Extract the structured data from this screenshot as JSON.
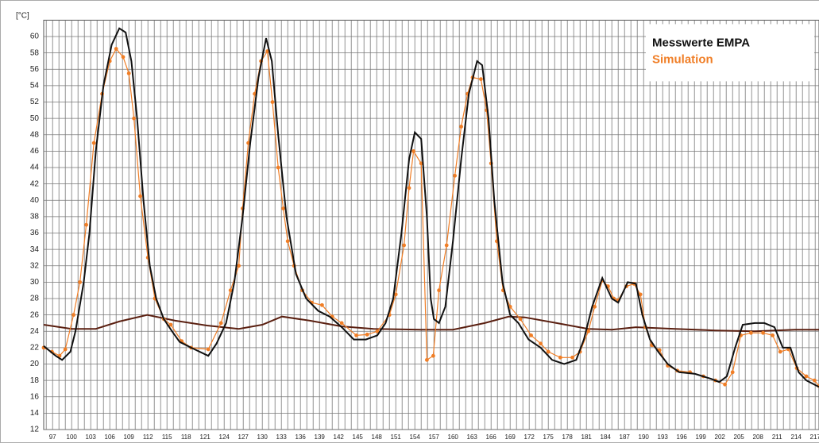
{
  "chart_data": {
    "type": "line",
    "y_label": "[°C]",
    "xlim": [
      95.6,
      217.6
    ],
    "ylim": [
      12,
      62
    ],
    "xticks": [
      97,
      100,
      103,
      106,
      109,
      112,
      115,
      118,
      121,
      124,
      127,
      130,
      133,
      136,
      139,
      142,
      145,
      148,
      151,
      154,
      157,
      160,
      163,
      166,
      169,
      172,
      175,
      178,
      181,
      184,
      187,
      190,
      193,
      196,
      199,
      202,
      205,
      208,
      211,
      214,
      217
    ],
    "yticks": [
      12,
      14,
      16,
      18,
      20,
      22,
      24,
      26,
      28,
      30,
      32,
      34,
      36,
      38,
      40,
      42,
      44,
      46,
      48,
      50,
      52,
      54,
      56,
      58,
      60
    ],
    "grid": true,
    "legend": "upper right",
    "series": [
      {
        "name": "Messwerte EMPA",
        "color": "#111111",
        "markers": false,
        "x": [
          95.6,
          97.5,
          98.5,
          99.8,
          100.6,
          101.9,
          102.8,
          103.8,
          105,
          106.3,
          107.5,
          108.5,
          109.4,
          110.3,
          111.3,
          112.3,
          113.3,
          114.5,
          115.8,
          117,
          118.8,
          121.5,
          122.8,
          124.3,
          125.6,
          126.9,
          128.1,
          129.4,
          130.6,
          131.5,
          132.5,
          133.8,
          135.3,
          136.9,
          138.8,
          140.6,
          142.5,
          144.4,
          146.3,
          148.1,
          149.4,
          150.6,
          151.9,
          153.1,
          154,
          155,
          155.9,
          156.5,
          157,
          157.8,
          158.8,
          160,
          161.3,
          162.5,
          163.8,
          164.6,
          165.6,
          166.5,
          167.8,
          169,
          170.3,
          171.9,
          173.8,
          175.6,
          177.5,
          179.4,
          180.6,
          181.9,
          183.5,
          185,
          186,
          187.5,
          188.8,
          189.8,
          191,
          192.3,
          193.8,
          195.6,
          198.1,
          200.6,
          201.9,
          203.1,
          204.4,
          205.6,
          207.5,
          209,
          210.6,
          211.9,
          213.1,
          214.4,
          215.6,
          217.6
        ],
        "values": [
          22.2,
          21,
          20.5,
          21.5,
          24,
          30,
          36,
          46,
          54,
          59,
          61,
          60.5,
          57,
          50,
          40,
          32,
          28,
          25.5,
          24,
          22.7,
          22,
          21,
          22.5,
          25,
          30,
          38,
          47,
          55,
          59.8,
          57,
          48,
          38,
          31,
          28,
          26.5,
          25.8,
          24.5,
          23,
          23,
          23.5,
          25,
          28,
          36,
          45,
          48.3,
          47.5,
          38,
          28,
          25.5,
          25,
          27,
          35,
          45,
          53,
          57,
          56.5,
          50,
          40,
          30,
          26,
          25,
          23,
          22,
          20.5,
          20,
          20.5,
          23,
          27,
          30.5,
          28,
          27.5,
          30,
          29.8,
          26,
          23,
          21.5,
          20,
          19,
          18.8,
          18.2,
          17.8,
          18.5,
          22,
          24.8,
          25,
          25,
          24.5,
          22,
          22,
          19,
          18,
          17.2
        ]
      },
      {
        "name": "Simulation",
        "color": "#f07e26",
        "markers": true,
        "x": [
          95.6,
          96.9,
          98.1,
          99,
          100.3,
          101.3,
          102.3,
          103.5,
          104.8,
          106,
          107,
          108.1,
          109,
          109.8,
          110.8,
          112,
          113.1,
          114.5,
          115.6,
          117.3,
          118.8,
          121.5,
          123.5,
          125,
          126.3,
          126.9,
          127.8,
          128.8,
          129.8,
          130.8,
          131.6,
          132.5,
          133.3,
          134,
          135,
          136.3,
          137.8,
          139.4,
          141,
          142.5,
          144.8,
          146.5,
          148.1,
          150,
          151,
          152.3,
          153.1,
          153.8,
          155,
          155.9,
          156.9,
          157.8,
          159,
          160.3,
          161.3,
          162.3,
          163.1,
          164.4,
          165.3,
          166,
          166.9,
          167.9,
          169,
          170.6,
          172.3,
          173.8,
          175,
          176.9,
          178.8,
          180,
          181.3,
          182.3,
          183.5,
          184.4,
          185.3,
          186,
          187.3,
          188.5,
          189.5,
          190.3,
          191.3,
          192.5,
          193.8,
          195.3,
          197.3,
          199.4,
          201.3,
          202.8,
          204,
          205.3,
          206.9,
          208.8,
          210.3,
          211.5,
          212.8,
          214.1,
          215.6,
          216.9,
          217.6
        ],
        "values": [
          22,
          21.5,
          21,
          21.8,
          26,
          30,
          37,
          47,
          53,
          57,
          58.5,
          57.5,
          55.5,
          50,
          40.5,
          33,
          28,
          25.5,
          24.8,
          22.8,
          22,
          21.8,
          25,
          29,
          32,
          39,
          47,
          53,
          57,
          58.2,
          52,
          44,
          39,
          35,
          32,
          29,
          27.5,
          27.2,
          25.8,
          25,
          23.5,
          23.6,
          24,
          26,
          28.5,
          34.5,
          41.5,
          46,
          44.5,
          20.5,
          21,
          29,
          34.5,
          43,
          49,
          53,
          55,
          54.8,
          51,
          44.5,
          35,
          29,
          27,
          25.5,
          23.5,
          22.5,
          21.5,
          20.8,
          20.8,
          21.5,
          24,
          27,
          30.2,
          29.5,
          28,
          27.8,
          29.5,
          29.8,
          28.5,
          24.5,
          22.3,
          21.7,
          19.8,
          19.2,
          19,
          18.5,
          18,
          17.5,
          19,
          23.5,
          23.8,
          23.8,
          23.5,
          21.5,
          21.8,
          19.5,
          18.5,
          18,
          17.3
        ]
      },
      {
        "color": "#5a1f10",
        "markers": false,
        "x": [
          95.6,
          100,
          103.8,
          107.5,
          111.9,
          116.3,
          121.3,
          126.3,
          130,
          133.1,
          137.5,
          142.5,
          147.5,
          155,
          160,
          165,
          168.8,
          171.3,
          176.3,
          181.3,
          185,
          188.8,
          195,
          201.3,
          207.5,
          213.8,
          217.6
        ],
        "values": [
          24.8,
          24.3,
          24.3,
          25.2,
          26,
          25.3,
          24.7,
          24.3,
          24.8,
          25.8,
          25.3,
          24.6,
          24.3,
          24.2,
          24.2,
          25,
          25.8,
          25.7,
          25,
          24.3,
          24.2,
          24.5,
          24.3,
          24.1,
          24,
          24.2,
          24.2
        ]
      }
    ]
  }
}
